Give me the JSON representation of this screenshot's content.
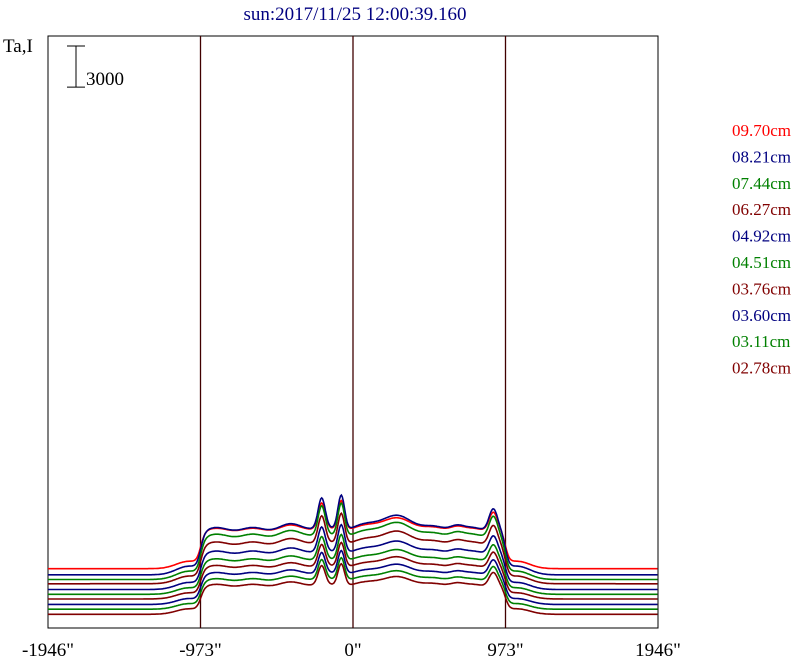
{
  "chart_data": {
    "type": "line",
    "title": "sun:2017/11/25 12:00:39.160",
    "ylabel": "Ta,I",
    "scale_bar_label": "3000",
    "scale_bar_value": 3000,
    "xlim": [
      -1946,
      1946
    ],
    "xticks": [
      {
        "value": -1946,
        "label": "-1946\""
      },
      {
        "value": -973,
        "label": "-973\""
      },
      {
        "value": 0,
        "label": "0\""
      },
      {
        "value": 973,
        "label": "973\""
      },
      {
        "value": 1946,
        "label": "1946\""
      }
    ],
    "vlines": [
      -973,
      0,
      973
    ],
    "grid": false,
    "legend_position": "right",
    "series": [
      {
        "name": "09.70cm",
        "color": "#ff0000",
        "baseline": 3600,
        "amp": 2.05
      },
      {
        "name": "08.21cm",
        "color": "#000080",
        "baseline": 3150,
        "amp": 2.4
      },
      {
        "name": "07.44cm",
        "color": "#008000",
        "baseline": 2810,
        "amp": 2.3
      },
      {
        "name": "06.27cm",
        "color": "#800000",
        "baseline": 2500,
        "amp": 2.12
      },
      {
        "name": "04.92cm",
        "color": "#000080",
        "baseline": 2080,
        "amp": 1.95
      },
      {
        "name": "04.51cm",
        "color": "#008000",
        "baseline": 1730,
        "amp": 1.8
      },
      {
        "name": "03.76cm",
        "color": "#800000",
        "baseline": 1390,
        "amp": 1.7
      },
      {
        "name": "03.60cm",
        "color": "#000080",
        "baseline": 990,
        "amp": 1.62
      },
      {
        "name": "03.11cm",
        "color": "#008000",
        "baseline": 640,
        "amp": 1.55
      },
      {
        "name": "02.78cm",
        "color": "#800000",
        "baseline": 270,
        "amp": 1.52
      }
    ]
  }
}
